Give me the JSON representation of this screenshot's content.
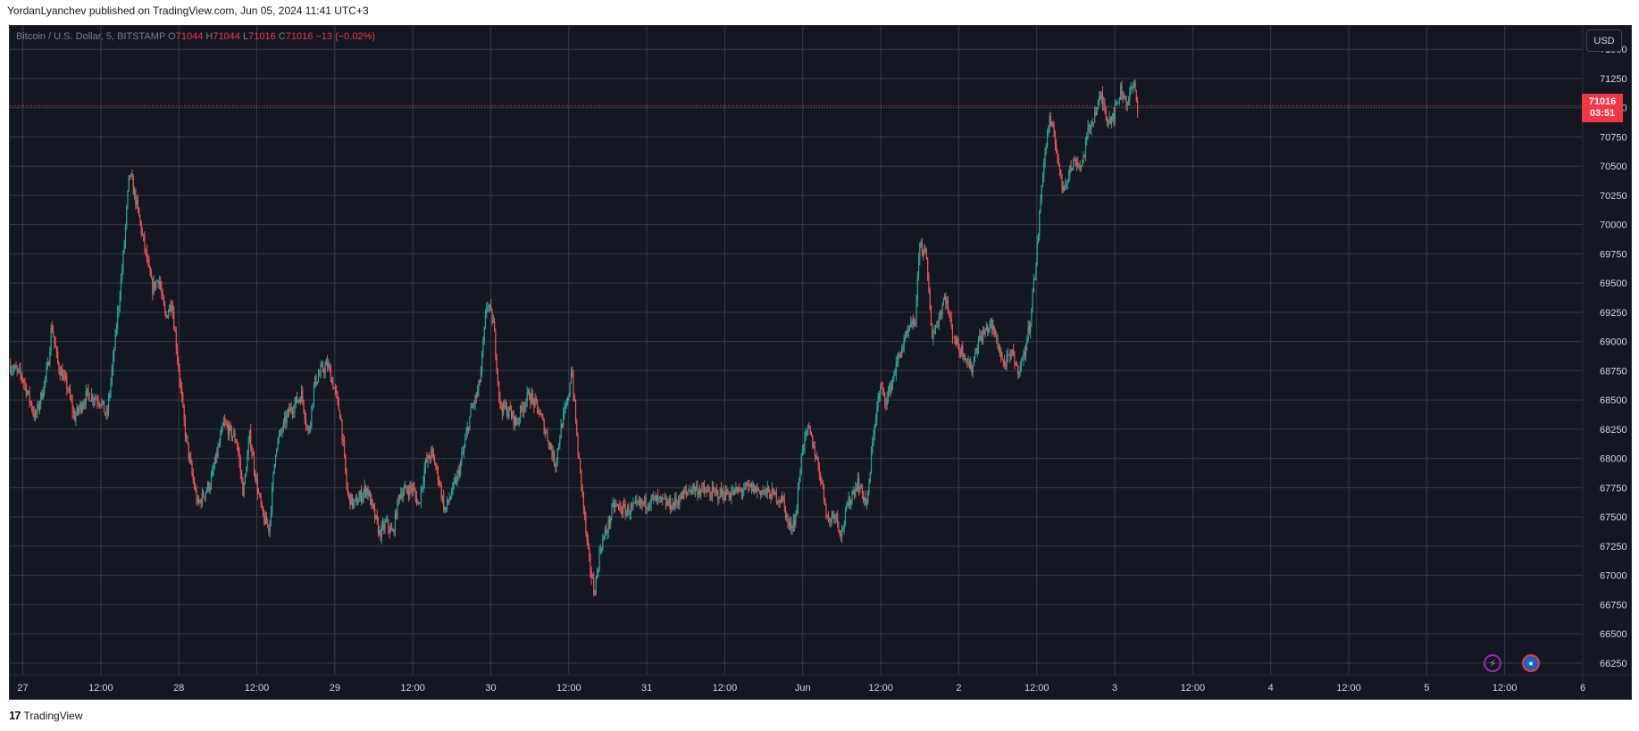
{
  "header": {
    "published_text": "YordanLyanchev published on TradingView.com, Jun 05, 2024 11:41 UTC+3"
  },
  "legend": {
    "symbol": "Bitcoin / U.S. Dollar, 5, BITSTAMP",
    "o_label": "O",
    "o_value": "71044",
    "h_label": "H",
    "h_value": "71044",
    "l_label": "L",
    "l_value": "71016",
    "c_label": "C",
    "c_value": "71016",
    "change": "−13 (−0.02%)"
  },
  "toolbar": {
    "currency_label": "USD"
  },
  "current_price": {
    "price": "71016",
    "countdown": "03:51"
  },
  "footer": {
    "brand_label": "TradingView",
    "logo_icon": "tradingview-logo-icon"
  },
  "icons": {
    "lightning": "lightning-icon",
    "flag": "us-flag-icon"
  },
  "colors": {
    "background": "#131722",
    "up": "#26a69a",
    "down": "#ef5350",
    "grid": "#363a45",
    "price_line": "#f23645"
  },
  "chart_data": {
    "type": "candlestick",
    "symbol": "Bitcoin / U.S. Dollar",
    "interval": "5",
    "exchange": "BITSTAMP",
    "ylim": [
      66150,
      71700
    ],
    "y_ticks": [
      71500,
      71250,
      71000,
      70750,
      70500,
      70250,
      70000,
      69750,
      69500,
      69250,
      69000,
      68750,
      68500,
      68250,
      68000,
      67750,
      67500,
      67250,
      67000,
      66750,
      66500,
      66250
    ],
    "x_tick_labels": [
      "27",
      "12:00",
      "28",
      "12:00",
      "29",
      "12:00",
      "30",
      "12:00",
      "31",
      "12:00",
      "Jun",
      "12:00",
      "2",
      "12:00",
      "3",
      "12:00",
      "4",
      "12:00",
      "5",
      "12:00",
      "6"
    ],
    "x_tick_hours": [
      0,
      12,
      24,
      36,
      48,
      60,
      72,
      84,
      96,
      108,
      120,
      132,
      144,
      156,
      168,
      180,
      192,
      204,
      216,
      228,
      240
    ],
    "x_range_hours": [
      -2,
      240
    ],
    "last_price": 71016,
    "price_path": [
      [
        -2,
        68800
      ],
      [
        0,
        68700
      ],
      [
        2,
        68350
      ],
      [
        3,
        68550
      ],
      [
        4,
        68800
      ],
      [
        4.5,
        69150
      ],
      [
        5.5,
        68800
      ],
      [
        7,
        68600
      ],
      [
        8,
        68350
      ],
      [
        10,
        68550
      ],
      [
        12,
        68500
      ],
      [
        13,
        68350
      ],
      [
        14,
        68850
      ],
      [
        15.5,
        69700
      ],
      [
        16.5,
        70450
      ],
      [
        17.5,
        70200
      ],
      [
        19,
        69750
      ],
      [
        20,
        69450
      ],
      [
        21,
        69550
      ],
      [
        22,
        69200
      ],
      [
        23,
        69350
      ],
      [
        24,
        68800
      ],
      [
        25,
        68250
      ],
      [
        26,
        67900
      ],
      [
        27,
        67600
      ],
      [
        28,
        67700
      ],
      [
        29,
        67800
      ],
      [
        30,
        68050
      ],
      [
        31,
        68300
      ],
      [
        33,
        68150
      ],
      [
        34,
        67700
      ],
      [
        35,
        68200
      ],
      [
        36,
        67800
      ],
      [
        37,
        67500
      ],
      [
        38,
        67400
      ],
      [
        39,
        68100
      ],
      [
        41,
        68400
      ],
      [
        43,
        68550
      ],
      [
        44,
        68200
      ],
      [
        45,
        68650
      ],
      [
        46,
        68750
      ],
      [
        47,
        68800
      ],
      [
        48,
        68600
      ],
      [
        49,
        68350
      ],
      [
        50,
        67700
      ],
      [
        51,
        67600
      ],
      [
        53,
        67750
      ],
      [
        54,
        67550
      ],
      [
        55,
        67350
      ],
      [
        56,
        67450
      ],
      [
        57,
        67350
      ],
      [
        58,
        67700
      ],
      [
        60,
        67750
      ],
      [
        61,
        67600
      ],
      [
        62,
        67950
      ],
      [
        63,
        68050
      ],
      [
        64,
        67850
      ],
      [
        65,
        67550
      ],
      [
        66,
        67700
      ],
      [
        67,
        67850
      ],
      [
        68,
        68100
      ],
      [
        69,
        68400
      ],
      [
        70,
        68550
      ],
      [
        70.5,
        68700
      ],
      [
        71.5,
        69350
      ],
      [
        72.5,
        69150
      ],
      [
        73.5,
        68450
      ],
      [
        75,
        68400
      ],
      [
        76,
        68300
      ],
      [
        77,
        68450
      ],
      [
        78,
        68550
      ],
      [
        79.5,
        68400
      ],
      [
        81,
        68150
      ],
      [
        82,
        67950
      ],
      [
        83,
        68300
      ],
      [
        84,
        68500
      ],
      [
        84.5,
        68800
      ],
      [
        85.5,
        68050
      ],
      [
        86,
        67800
      ],
      [
        87,
        67200
      ],
      [
        88,
        66850
      ],
      [
        89,
        67250
      ],
      [
        90,
        67400
      ],
      [
        91,
        67600
      ],
      [
        93,
        67550
      ],
      [
        95,
        67600
      ],
      [
        97,
        67650
      ],
      [
        100,
        67600
      ],
      [
        103,
        67750
      ],
      [
        106,
        67700
      ],
      [
        109,
        67700
      ],
      [
        112,
        67750
      ],
      [
        115,
        67700
      ],
      [
        117,
        67650
      ],
      [
        118,
        67400
      ],
      [
        119,
        67500
      ],
      [
        120,
        68100
      ],
      [
        121,
        68250
      ],
      [
        122,
        68050
      ],
      [
        123,
        67800
      ],
      [
        124,
        67450
      ],
      [
        125,
        67550
      ],
      [
        126,
        67350
      ],
      [
        127,
        67600
      ],
      [
        128.5,
        67800
      ],
      [
        130,
        67600
      ],
      [
        131,
        68250
      ],
      [
        132,
        68600
      ],
      [
        133,
        68500
      ],
      [
        134,
        68700
      ],
      [
        135,
        68900
      ],
      [
        136.5,
        69100
      ],
      [
        137.5,
        69200
      ],
      [
        138,
        69850
      ],
      [
        139,
        69750
      ],
      [
        140,
        69050
      ],
      [
        141,
        69200
      ],
      [
        142,
        69400
      ],
      [
        143,
        69100
      ],
      [
        144,
        68950
      ],
      [
        145,
        68900
      ],
      [
        146,
        68750
      ],
      [
        147,
        69000
      ],
      [
        149,
        69150
      ],
      [
        150,
        69000
      ],
      [
        151,
        68800
      ],
      [
        152.5,
        68900
      ],
      [
        153,
        68750
      ],
      [
        154,
        68850
      ],
      [
        155,
        69150
      ],
      [
        156,
        69700
      ],
      [
        157,
        70450
      ],
      [
        158,
        70900
      ],
      [
        159,
        70700
      ],
      [
        160,
        70300
      ],
      [
        161,
        70450
      ],
      [
        162,
        70550
      ],
      [
        163,
        70500
      ],
      [
        164,
        70800
      ],
      [
        165,
        70950
      ],
      [
        166,
        71100
      ],
      [
        167,
        70900
      ],
      [
        168,
        70950
      ],
      [
        169,
        71150
      ],
      [
        170,
        71050
      ],
      [
        171,
        71200
      ],
      [
        171.6,
        71016
      ]
    ]
  }
}
